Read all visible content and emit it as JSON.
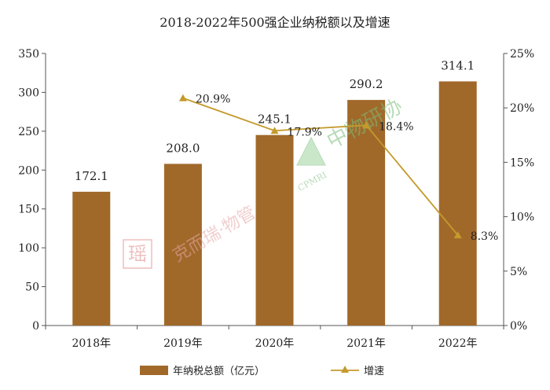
{
  "chart_data": {
    "type": "bar+line",
    "title": "2018-2022年500强企业纳税额以及增速",
    "categories": [
      "2018年",
      "2019年",
      "2020年",
      "2021年",
      "2022年"
    ],
    "series": [
      {
        "name": "年纳税总额（亿元）",
        "type": "bar",
        "axis": "left",
        "values": [
          172.1,
          208.0,
          245.1,
          290.2,
          314.1
        ],
        "labels": [
          "172.1",
          "208.0",
          "245.1",
          "290.2",
          "314.1"
        ],
        "color": "#A0692A"
      },
      {
        "name": "增速",
        "type": "line",
        "axis": "right",
        "values": [
          null,
          20.9,
          17.9,
          18.4,
          8.3
        ],
        "labels": [
          "",
          "20.9%",
          "17.9%",
          "18.4%",
          "8.3%"
        ],
        "color": "#C49A2B"
      }
    ],
    "y_left": {
      "min": 0,
      "max": 350,
      "ticks": [
        "0",
        "50",
        "100",
        "150",
        "200",
        "250",
        "300",
        "350"
      ]
    },
    "y_right": {
      "min": 0,
      "max": 25,
      "ticks": [
        "0%",
        "5%",
        "10%",
        "15%",
        "20%",
        "25%"
      ]
    },
    "legend_position": "bottom",
    "grid": false
  },
  "watermarks": {
    "left_text": "克而瑞·物管",
    "left_badge": "瑶",
    "right_text": "中物研协",
    "right_abbr": "CPMRI"
  }
}
